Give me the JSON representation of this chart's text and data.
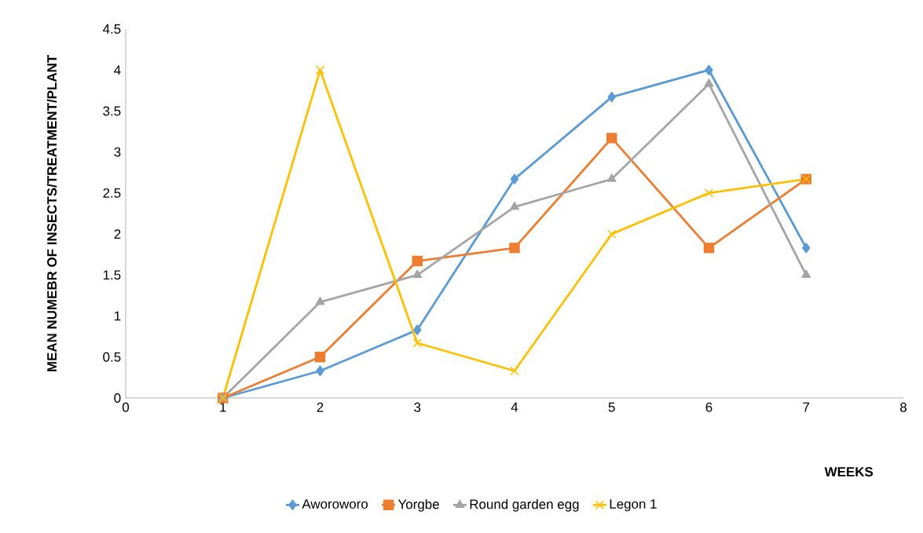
{
  "chart_data": {
    "type": "line",
    "xlabel": "WEEKS",
    "ylabel": "MEAN NUMEBR OF INSECTS/TREATMENT/PLANT",
    "x": [
      1,
      2,
      3,
      4,
      5,
      6,
      7
    ],
    "series": [
      {
        "name": "Aworoworo",
        "color": "#5b9bd5",
        "marker": "diamond",
        "values": [
          0,
          0.33,
          0.83,
          2.67,
          3.67,
          4,
          1.83
        ]
      },
      {
        "name": "Yorgbe",
        "color": "#ed7d31",
        "marker": "square",
        "values": [
          0,
          0.5,
          1.67,
          1.83,
          3.17,
          1.83,
          2.67
        ]
      },
      {
        "name": "Round garden egg",
        "color": "#a5a5a5",
        "marker": "triangle",
        "values": [
          0,
          1.17,
          1.5,
          2.33,
          2.67,
          3.83,
          1.5
        ]
      },
      {
        "name": "Legon 1",
        "color": "#ffc000",
        "marker": "cross",
        "values": [
          0,
          4,
          0.67,
          0.33,
          2,
          2.5,
          2.67
        ]
      }
    ],
    "xlim": [
      0,
      8
    ],
    "xticks": [
      0,
      1,
      2,
      3,
      4,
      5,
      6,
      7,
      8
    ],
    "ylim": [
      0,
      4.5
    ],
    "yticks": [
      0,
      0.5,
      1,
      1.5,
      2,
      2.5,
      3,
      3.5,
      4,
      4.5
    ],
    "grid": false,
    "legend": "bottom"
  }
}
